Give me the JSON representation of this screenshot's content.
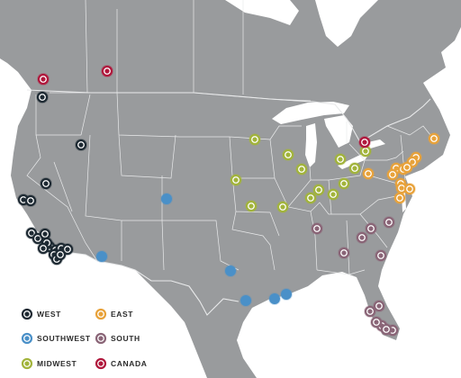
{
  "colors": {
    "land": "#999b9d",
    "water": "#ffffff",
    "border": "#e9eaeb",
    "west": "#1e2a33",
    "southwest": "#4a90c8",
    "midwest": "#a2b43b",
    "east": "#e8a23a",
    "south": "#8a6577",
    "canada": "#b0173c"
  },
  "legend": [
    {
      "key": "west",
      "label": "WEST",
      "icon": "dot-icon"
    },
    {
      "key": "southwest",
      "label": "SOUTHWEST",
      "icon": "dot-icon"
    },
    {
      "key": "midwest",
      "label": "MIDWEST",
      "icon": "dot-icon"
    },
    {
      "key": "east",
      "label": "EAST",
      "icon": "dot-icon"
    },
    {
      "key": "south",
      "label": "SOUTH",
      "icon": "dot-icon"
    },
    {
      "key": "canada",
      "label": "CANADA",
      "icon": "dot-icon"
    }
  ],
  "locations": {
    "west": 17,
    "southwest": 6,
    "midwest": 13,
    "east": 12,
    "south": 12,
    "canada": 3
  }
}
